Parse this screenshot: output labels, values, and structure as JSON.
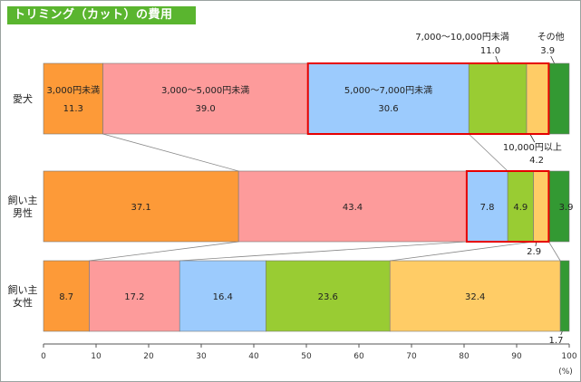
{
  "title": "トリミング（カット）の費用",
  "unit_label": "(%)",
  "chart_data": {
    "type": "bar",
    "orientation": "horizontal-stacked",
    "xlim": [
      0,
      100
    ],
    "x_ticks": [
      "0",
      "10",
      "20",
      "30",
      "40",
      "50",
      "60",
      "70",
      "80",
      "90",
      "100"
    ],
    "grid": false,
    "segments": [
      {
        "name": "3,000円未満",
        "color": "#fd9a38"
      },
      {
        "name": "3,000～5,000円未満",
        "color": "#fd9b9b"
      },
      {
        "name": "5,000～7,000円未満",
        "color": "#9ccbfd"
      },
      {
        "name": "7,000～10,000円未満",
        "color": "#99cc33"
      },
      {
        "name": "10,000円以上",
        "color": "#ffcc66"
      },
      {
        "name": "その他",
        "color": "#339933"
      }
    ],
    "categories": [
      {
        "lines": [
          "愛犬"
        ],
        "values": [
          11.3,
          39.0,
          30.6,
          11.0,
          4.2,
          3.9
        ]
      },
      {
        "lines": [
          "飼い主",
          "男性"
        ],
        "values": [
          37.1,
          43.4,
          7.8,
          4.9,
          2.9,
          3.9
        ]
      },
      {
        "lines": [
          "飼い主",
          "女性"
        ],
        "values": [
          8.7,
          17.2,
          16.4,
          23.6,
          32.4,
          1.7
        ]
      }
    ]
  }
}
